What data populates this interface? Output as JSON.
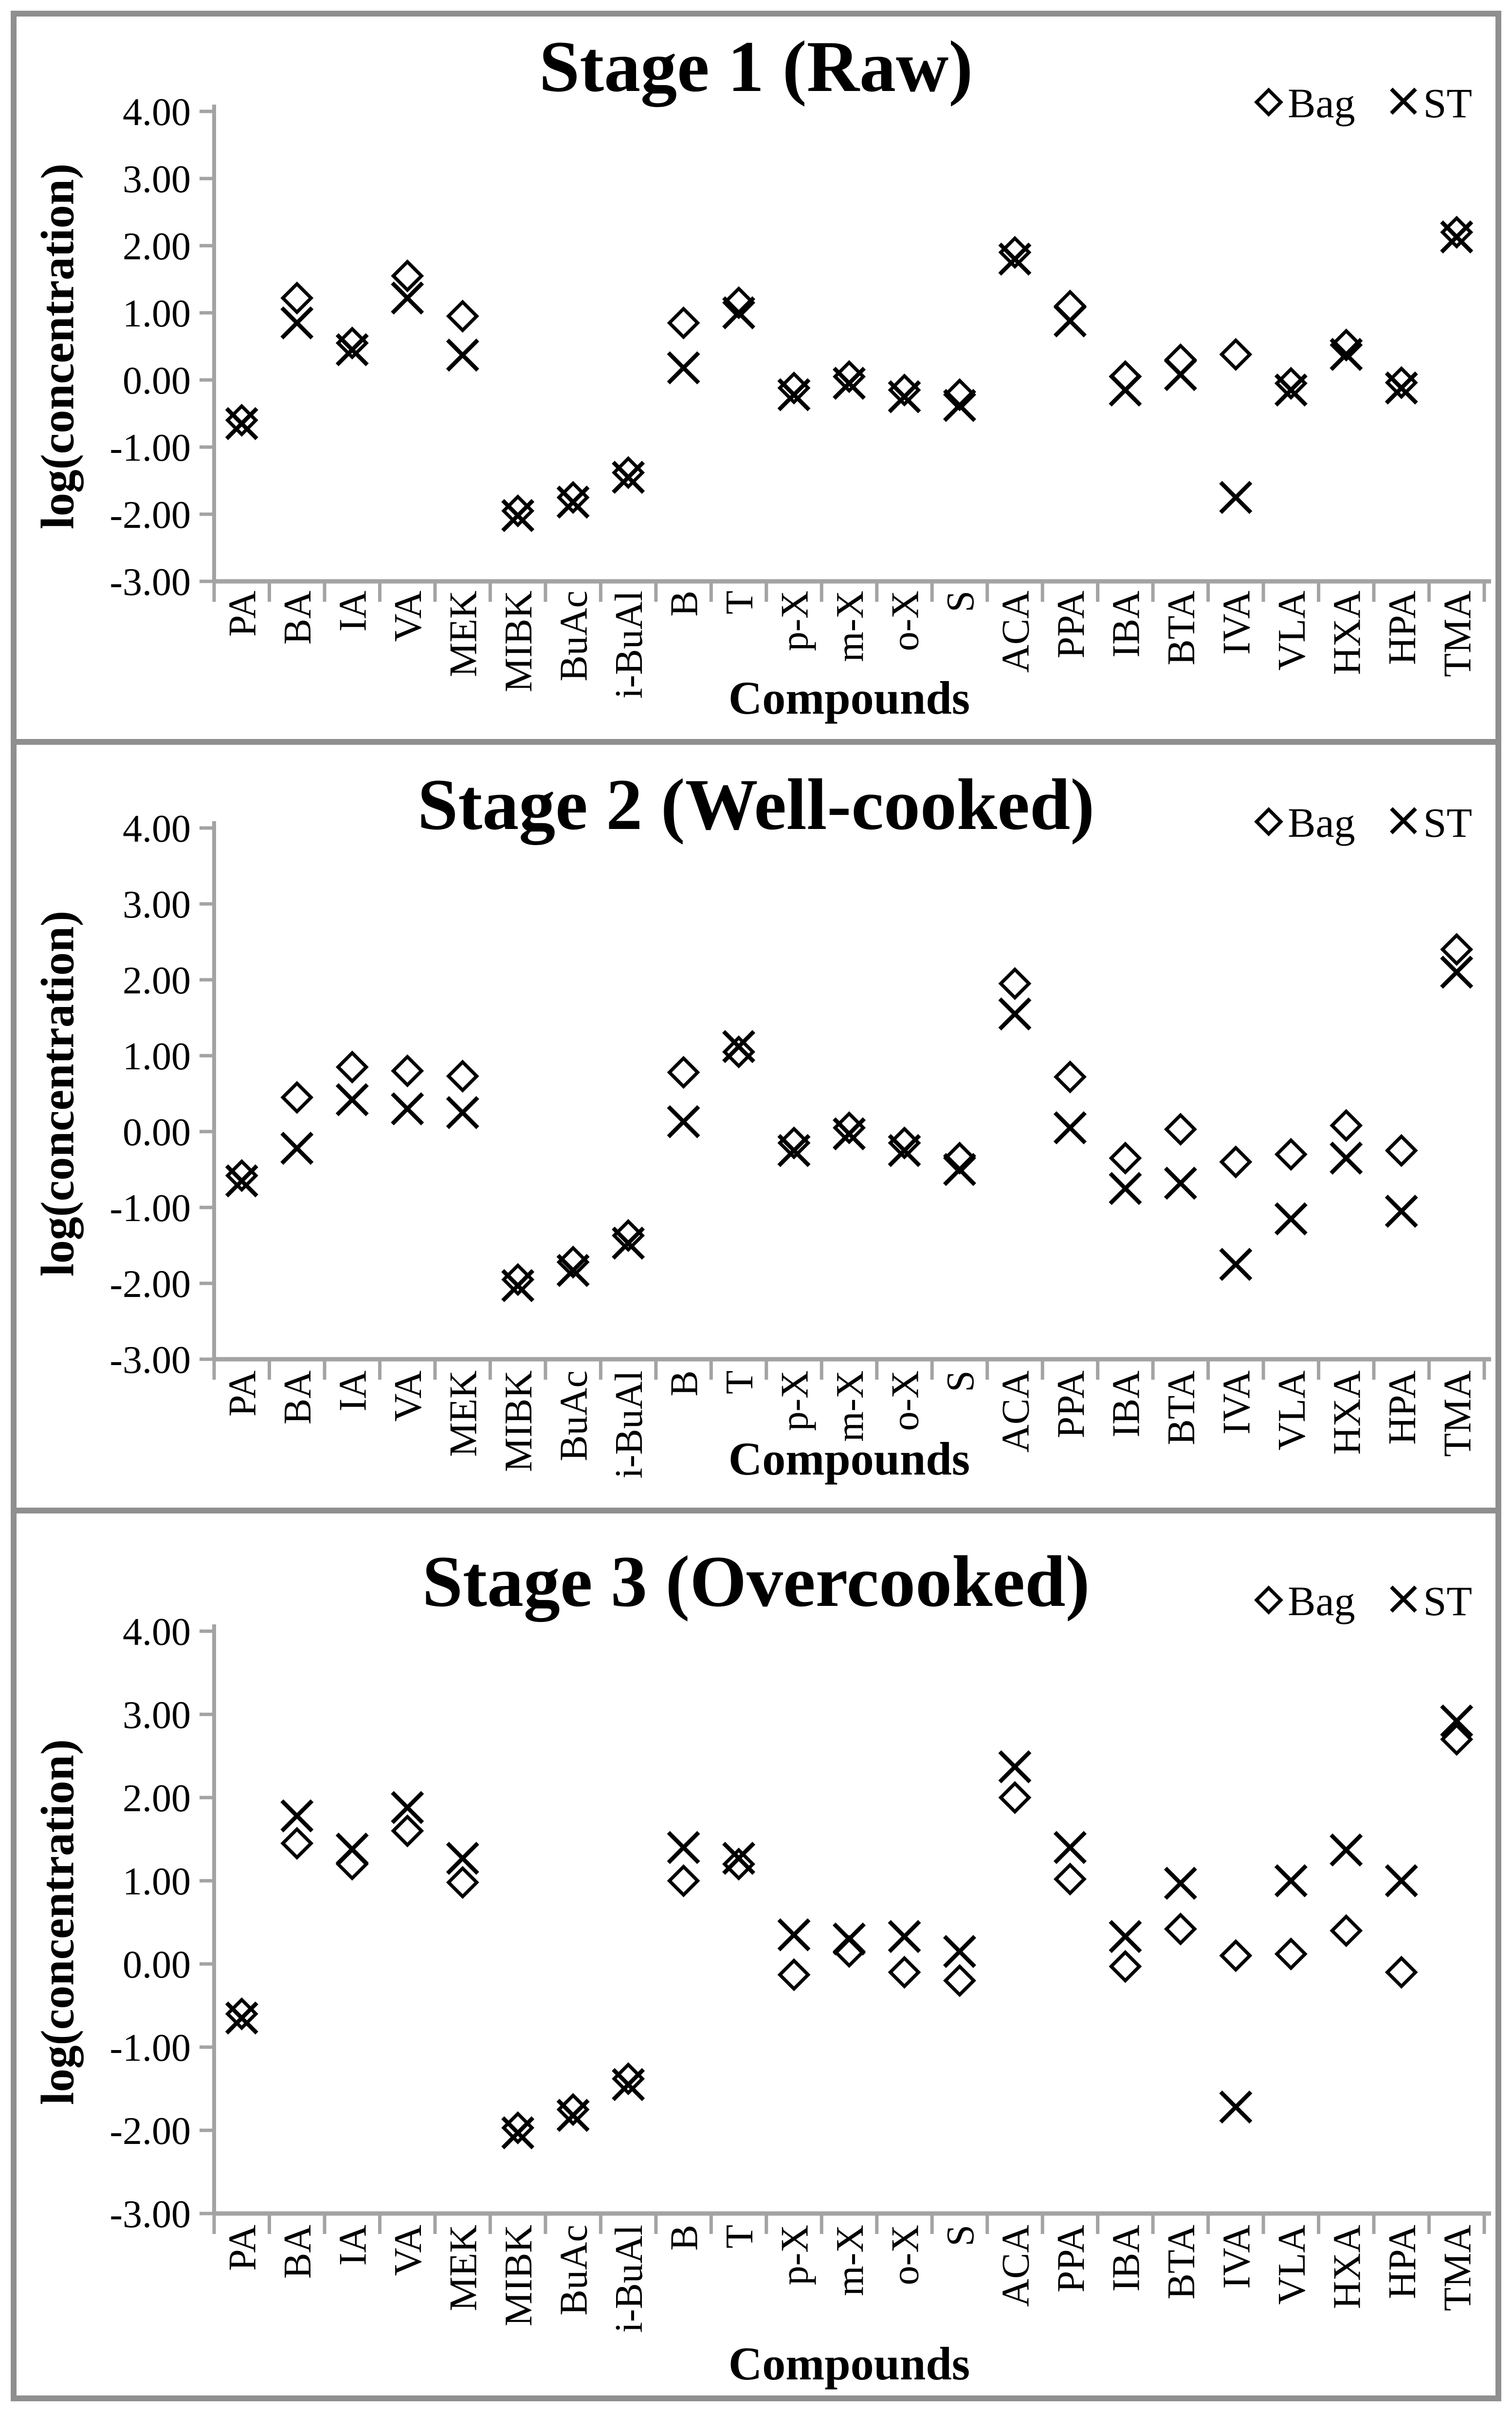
{
  "figure": {
    "background": "#ffffff",
    "border_color": "#8f8f8f",
    "axis_color": "#a3a3a3",
    "marker_color": "#000000"
  },
  "chart_data": [
    {
      "type": "scatter",
      "title": "Stage 1 (Raw)",
      "xlabel": "Compounds",
      "ylabel": "log(concentration)",
      "ylim": [
        -3,
        4
      ],
      "y_ticks": [
        "4.00",
        "3.00",
        "2.00",
        "1.00",
        "0.00",
        "-1.00",
        "-2.00",
        "-3.00"
      ],
      "grid": false,
      "legend_position": "top-right",
      "categories": [
        "PA",
        "BA",
        "IA",
        "VA",
        "MEK",
        "MIBK",
        "BuAc",
        "i-BuAl",
        "B",
        "T",
        "p-X",
        "m-X",
        "o-X",
        "S",
        "ACA",
        "PPA",
        "IBA",
        "BTA",
        "IVA",
        "VLA",
        "HXA",
        "HPA",
        "TMA"
      ],
      "series": [
        {
          "name": "Bag",
          "marker": "diamond",
          "values": [
            -0.6,
            1.22,
            0.55,
            1.55,
            0.95,
            -1.95,
            -1.75,
            -1.38,
            0.85,
            1.15,
            -0.12,
            0.05,
            -0.15,
            -0.22,
            1.9,
            1.1,
            0.05,
            0.3,
            0.38,
            -0.05,
            0.52,
            -0.04,
            2.2
          ]
        },
        {
          "name": "ST",
          "marker": "x",
          "values": [
            -0.65,
            0.85,
            0.45,
            1.22,
            0.37,
            -2.02,
            -1.82,
            -1.45,
            0.18,
            1.0,
            -0.22,
            -0.05,
            -0.25,
            -0.38,
            1.8,
            0.88,
            -0.15,
            0.08,
            -1.75,
            -0.15,
            0.38,
            -0.12,
            2.13
          ]
        }
      ]
    },
    {
      "type": "scatter",
      "title": "Stage 2 (Well-cooked)",
      "xlabel": "Compounds",
      "ylabel": "log(concentration)",
      "ylim": [
        -3,
        4
      ],
      "y_ticks": [
        "4.00",
        "3.00",
        "2.00",
        "1.00",
        "0.00",
        "-1.00",
        "-2.00",
        "-3.00"
      ],
      "grid": false,
      "legend_position": "top-right",
      "categories": [
        "PA",
        "BA",
        "IA",
        "VA",
        "MEK",
        "MIBK",
        "BuAc",
        "i-BuAl",
        "B",
        "T",
        "p-X",
        "m-X",
        "o-X",
        "S",
        "ACA",
        "PPA",
        "IBA",
        "BTA",
        "IVA",
        "VLA",
        "HXA",
        "HPA",
        "TMA"
      ],
      "series": [
        {
          "name": "Bag",
          "marker": "diamond",
          "values": [
            -0.58,
            0.45,
            0.85,
            0.8,
            0.73,
            -1.95,
            -1.72,
            -1.37,
            0.78,
            1.05,
            -0.15,
            0.05,
            -0.15,
            -0.35,
            1.95,
            0.72,
            -0.35,
            0.03,
            -0.4,
            -0.3,
            0.08,
            -0.25,
            2.4
          ]
        },
        {
          "name": "ST",
          "marker": "x",
          "values": [
            -0.65,
            -0.22,
            0.42,
            0.3,
            0.25,
            -2.03,
            -1.83,
            -1.47,
            0.13,
            1.12,
            -0.25,
            -0.03,
            -0.25,
            -0.5,
            1.55,
            0.05,
            -0.75,
            -0.68,
            -1.75,
            -1.15,
            -0.35,
            -1.05,
            2.1
          ]
        }
      ]
    },
    {
      "type": "scatter",
      "title": "Stage 3 (Overcooked)",
      "xlabel": "Compounds",
      "ylabel": "log(concentration)",
      "ylim": [
        -3,
        4
      ],
      "y_ticks": [
        "4.00",
        "3.00",
        "2.00",
        "1.00",
        "0.00",
        "-1.00",
        "-2.00",
        "-3.00"
      ],
      "grid": false,
      "legend_position": "top-right",
      "categories": [
        "PA",
        "BA",
        "IA",
        "VA",
        "MEK",
        "MIBK",
        "BuAc",
        "i-BuAl",
        "B",
        "T",
        "p-X",
        "m-X",
        "o-X",
        "S",
        "ACA",
        "PPA",
        "IBA",
        "BTA",
        "IVA",
        "VLA",
        "HXA",
        "HPA",
        "TMA"
      ],
      "series": [
        {
          "name": "Bag",
          "marker": "diamond",
          "values": [
            -0.6,
            1.45,
            1.2,
            1.6,
            0.98,
            -1.97,
            -1.75,
            -1.38,
            1.0,
            1.2,
            -0.13,
            0.15,
            -0.1,
            -0.2,
            2.0,
            1.02,
            -0.03,
            0.42,
            0.1,
            0.12,
            0.4,
            -0.1,
            2.7
          ]
        },
        {
          "name": "ST",
          "marker": "x",
          "values": [
            -0.65,
            1.78,
            1.38,
            1.88,
            1.27,
            -2.03,
            -1.82,
            -1.45,
            1.4,
            1.27,
            0.35,
            0.3,
            0.33,
            0.15,
            2.37,
            1.4,
            0.33,
            0.97,
            -1.72,
            1.0,
            1.37,
            1.0,
            2.92
          ]
        }
      ]
    }
  ]
}
